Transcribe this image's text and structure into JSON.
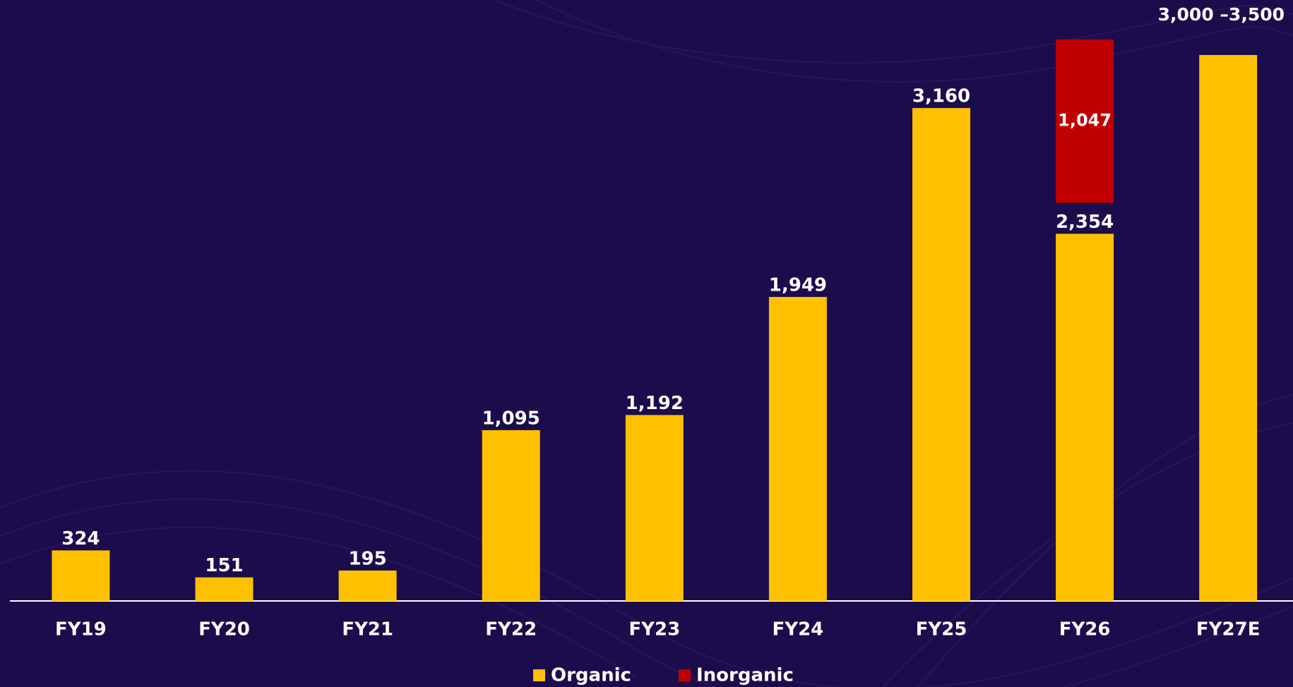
{
  "chart_data": {
    "type": "bar",
    "stacked": true,
    "categories": [
      "FY19",
      "FY20",
      "FY21",
      "FY22",
      "FY23",
      "FY24",
      "FY25",
      "FY26",
      "FY27E"
    ],
    "series": [
      {
        "name": "Organic",
        "color": "#ffc000",
        "values": [
          324,
          151,
          195,
          1095,
          1192,
          1949,
          3160,
          2354,
          3500
        ],
        "value_labels": [
          "324",
          "151",
          "195",
          "1,095",
          "1,192",
          "1,949",
          "3,160",
          "2,354",
          "3,000 –3,500"
        ]
      },
      {
        "name": "Inorganic",
        "color": "#c00000",
        "values": [
          null,
          null,
          null,
          null,
          null,
          null,
          null,
          1047,
          null
        ],
        "value_labels": [
          null,
          null,
          null,
          null,
          null,
          null,
          null,
          "1,047",
          null
        ]
      }
    ],
    "legend": "bottom"
  }
}
